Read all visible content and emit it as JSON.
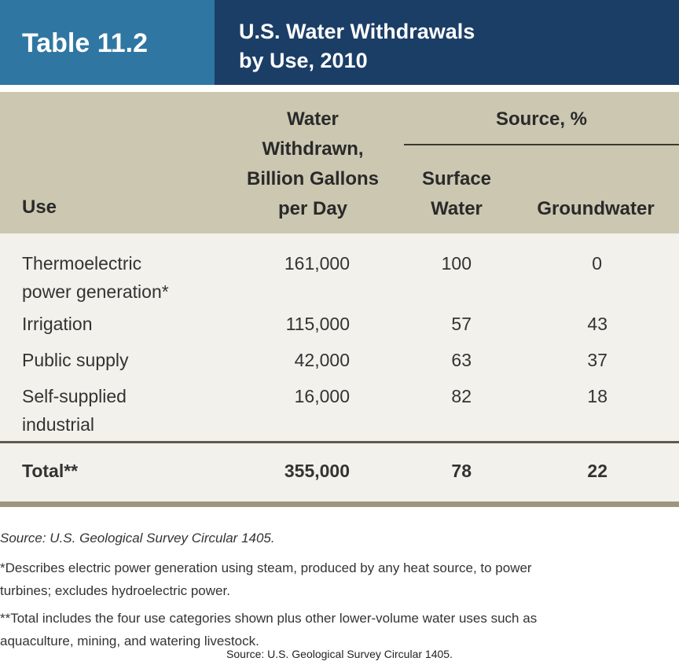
{
  "header": {
    "table_number": "Table 11.2",
    "title_line1": "U.S. Water Withdrawals",
    "title_line2": "by Use, 2010"
  },
  "columns": {
    "use": "Use",
    "withdrawn": [
      "Water",
      "Withdrawn,",
      "Billion Gallons",
      "per Day"
    ],
    "source_group": "Source, %",
    "surface": [
      "Surface",
      "Water"
    ],
    "ground": "Groundwater"
  },
  "rows": [
    {
      "use": [
        "Thermoelectric",
        "power generation*"
      ],
      "withdrawn": "161,000",
      "surface": "100",
      "ground": "0"
    },
    {
      "use": [
        "Irrigation"
      ],
      "withdrawn": "115,000",
      "surface": "57",
      "ground": "43"
    },
    {
      "use": [
        "Public supply"
      ],
      "withdrawn": "42,000",
      "surface": "63",
      "ground": "37"
    },
    {
      "use": [
        "Self-supplied",
        "industrial"
      ],
      "withdrawn": "16,000",
      "surface": "82",
      "ground": "18"
    }
  ],
  "total": {
    "use": "Total**",
    "withdrawn": "355,000",
    "surface": "78",
    "ground": "22"
  },
  "footnotes": {
    "source": "Source: U.S. Geological Survey Circular 1405.",
    "note1_line1": "*Describes electric power generation using steam, produced by any heat source, to power",
    "note1_line2": "turbines; excludes hydroelectric power.",
    "note2_line1": "**Total includes the four use categories shown plus other lower-volume water uses such as",
    "note2_line2": "aquaculture, mining, and watering livestock.",
    "credit": "Source: U.S. Geological Survey Circular 1405."
  }
}
